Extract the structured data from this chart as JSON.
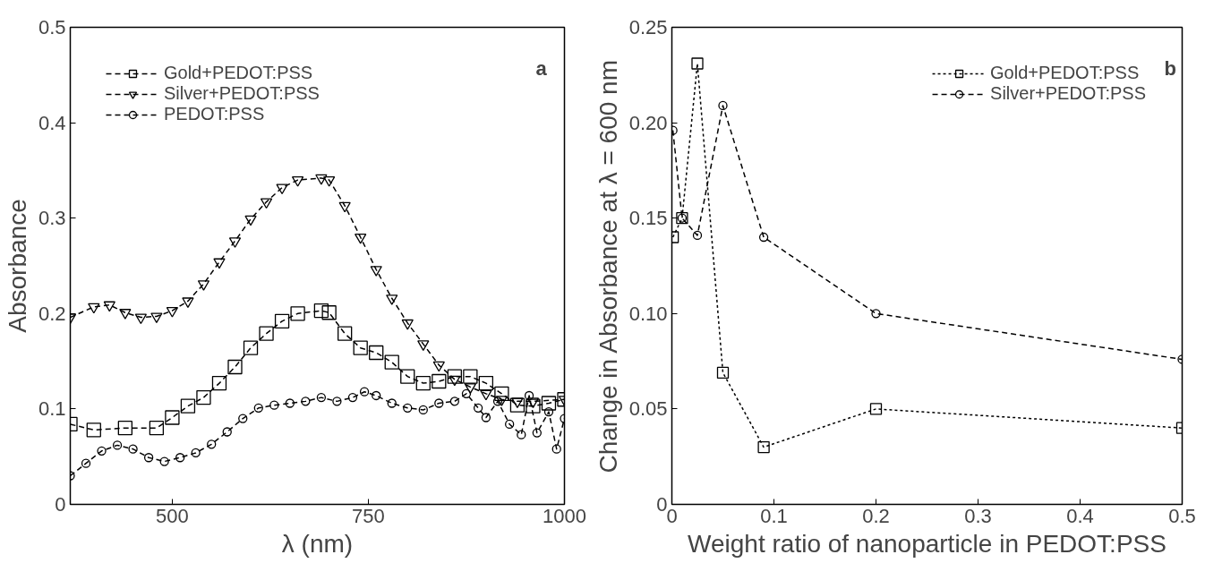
{
  "chart_data": [
    {
      "type": "line",
      "xlabel": "λ (nm)",
      "ylabel": "Absorbance",
      "annotations": [
        "a"
      ],
      "xlim": [
        370,
        1000
      ],
      "ylim": [
        0,
        0.5
      ],
      "xticks": [
        500,
        750,
        1000
      ],
      "yticks": [
        0,
        0.1,
        0.2,
        0.3,
        0.4,
        0.5
      ],
      "grid": false,
      "legend": "top left",
      "series": [
        {
          "name": "Gold+PEDOT:PSS",
          "color": "#000000",
          "marker": "square",
          "line_style": "dashed",
          "x": [
            370,
            400,
            440,
            480,
            500,
            520,
            540,
            560,
            580,
            600,
            620,
            640,
            660,
            690,
            700,
            720,
            740,
            760,
            780,
            800,
            820,
            840,
            860,
            880,
            900,
            920,
            940,
            960,
            980,
            1000
          ],
          "values": [
            0.084,
            0.078,
            0.08,
            0.08,
            0.091,
            0.103,
            0.112,
            0.127,
            0.144,
            0.164,
            0.179,
            0.192,
            0.2,
            0.203,
            0.201,
            0.179,
            0.164,
            0.159,
            0.149,
            0.134,
            0.127,
            0.129,
            0.134,
            0.134,
            0.127,
            0.116,
            0.104,
            0.103,
            0.106,
            0.11
          ]
        },
        {
          "name": "Silver+PEDOT:PSS",
          "color": "#000000",
          "marker": "triangle",
          "line_style": "dashed",
          "x": [
            370,
            400,
            420,
            440,
            460,
            480,
            500,
            520,
            540,
            560,
            580,
            600,
            620,
            640,
            660,
            690,
            700,
            720,
            740,
            760,
            780,
            800,
            820,
            840,
            860,
            880,
            900,
            920,
            940,
            960,
            1000
          ],
          "values": [
            0.196,
            0.207,
            0.209,
            0.201,
            0.196,
            0.197,
            0.203,
            0.213,
            0.231,
            0.254,
            0.276,
            0.299,
            0.317,
            0.332,
            0.34,
            0.342,
            0.34,
            0.313,
            0.28,
            0.246,
            0.216,
            0.19,
            0.168,
            0.146,
            0.131,
            0.123,
            0.116,
            0.11,
            0.108,
            0.108,
            0.11
          ]
        },
        {
          "name": "PEDOT:PSS",
          "color": "#000000",
          "marker": "circle",
          "line_style": "dashed",
          "x": [
            370,
            390,
            410,
            430,
            450,
            470,
            490,
            510,
            530,
            550,
            570,
            590,
            610,
            630,
            650,
            670,
            690,
            710,
            730,
            745,
            760,
            780,
            800,
            820,
            840,
            860,
            875,
            890,
            900,
            915,
            930,
            945,
            955,
            965,
            980,
            990,
            1000
          ],
          "values": [
            0.03,
            0.043,
            0.056,
            0.062,
            0.058,
            0.049,
            0.045,
            0.049,
            0.054,
            0.063,
            0.076,
            0.09,
            0.101,
            0.104,
            0.106,
            0.108,
            0.112,
            0.108,
            0.112,
            0.118,
            0.114,
            0.106,
            0.101,
            0.099,
            0.106,
            0.108,
            0.116,
            0.101,
            0.091,
            0.108,
            0.084,
            0.073,
            0.114,
            0.075,
            0.097,
            0.058,
            0.09
          ]
        }
      ]
    },
    {
      "type": "line",
      "xlabel": "Weight ratio of nanoparticle in PEDOT:PSS",
      "ylabel": "Change in Absorbance at λ = 600 nm",
      "annotations": [
        "b"
      ],
      "xlim": [
        0,
        0.5
      ],
      "ylim": [
        0,
        0.25
      ],
      "xticks": [
        0,
        0.1,
        0.2,
        0.3,
        0.4,
        0.5
      ],
      "yticks": [
        0,
        0.05,
        {
          "value": 0.1,
          "label": "0.10"
        },
        0.15,
        {
          "value": 0.2,
          "label": "0.20"
        },
        0.25
      ],
      "grid": false,
      "legend": "top right",
      "series": [
        {
          "name": "Gold+PEDOT:PSS",
          "color": "#000000",
          "marker": "square",
          "line_style": "dotted",
          "x": [
            0.001,
            0.01,
            0.025,
            0.05,
            0.09,
            0.2,
            0.5
          ],
          "values": [
            0.14,
            0.15,
            0.231,
            0.069,
            0.03,
            0.05,
            0.04
          ]
        },
        {
          "name": "Silver+PEDOT:PSS",
          "color": "#000000",
          "marker": "circle",
          "line_style": "dashed",
          "x": [
            0.001,
            0.01,
            0.025,
            0.05,
            0.09,
            0.2,
            0.5
          ],
          "values": [
            0.196,
            0.15,
            0.141,
            0.209,
            0.14,
            0.1,
            0.076
          ]
        }
      ]
    }
  ]
}
